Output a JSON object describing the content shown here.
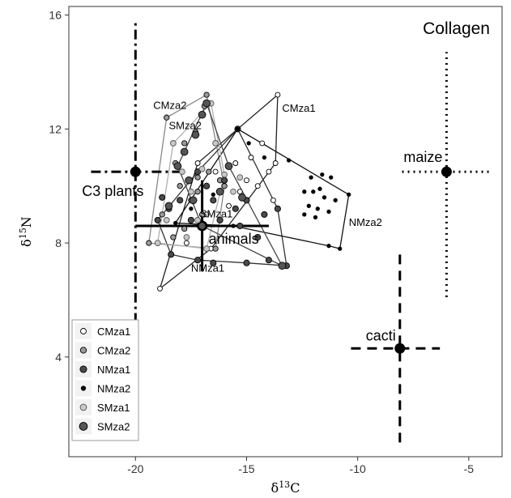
{
  "chart_data": {
    "type": "scatter",
    "title": "Collagen",
    "xlabel": "δ13C",
    "ylabel": "δ15N",
    "xlim": [
      -23,
      -3.5
    ],
    "ylim": [
      0.5,
      16.3
    ],
    "xticks": [
      -20,
      -15,
      -10,
      -5
    ],
    "yticks": [
      4,
      8,
      12,
      16
    ],
    "grid": false,
    "legend": "bottom-left",
    "series": [
      {
        "name": "CMza1",
        "marker": "open",
        "fill": "#ffffff",
        "hull": [
          [
            -18.9,
            6.4
          ],
          [
            -16.6,
            7.8
          ],
          [
            -13.7,
            10.8
          ],
          [
            -13.6,
            13.2
          ],
          [
            -17.2,
            10.8
          ]
        ],
        "points": [
          [
            -16.4,
            10.5
          ],
          [
            -16.0,
            10.0
          ],
          [
            -15.5,
            10.8
          ],
          [
            -15.3,
            9.8
          ],
          [
            -15.0,
            10.2
          ],
          [
            -14.5,
            10.0
          ],
          [
            -14.8,
            11.0
          ],
          [
            -14.3,
            11.5
          ],
          [
            -14.0,
            10.5
          ],
          [
            -13.8,
            9.5
          ],
          [
            -16.8,
            9.0
          ],
          [
            -15.8,
            9.3
          ],
          [
            -13.7,
            10.8
          ],
          [
            -13.6,
            13.2
          ],
          [
            -18.9,
            6.4
          ],
          [
            -17.7,
            8.0
          ],
          [
            -16.6,
            7.8
          ],
          [
            -17.2,
            10.8
          ]
        ]
      },
      {
        "name": "CMza2",
        "marker": "medium-grey",
        "fill": "#9a9a9a",
        "hull": [
          [
            -19.4,
            8.0
          ],
          [
            -18.6,
            12.4
          ],
          [
            -16.8,
            13.2
          ],
          [
            -16.0,
            10.0
          ],
          [
            -16.4,
            7.8
          ]
        ],
        "points": [
          [
            -18.6,
            12.4
          ],
          [
            -16.8,
            13.2
          ],
          [
            -16.9,
            12.8
          ],
          [
            -17.3,
            11.9
          ],
          [
            -17.8,
            11.5
          ],
          [
            -18.2,
            10.8
          ],
          [
            -18.0,
            10.0
          ],
          [
            -17.5,
            9.5
          ],
          [
            -17.2,
            9.8
          ],
          [
            -16.7,
            10.5
          ],
          [
            -16.2,
            10.2
          ],
          [
            -16.0,
            10.0
          ],
          [
            -17.0,
            9.0
          ],
          [
            -17.8,
            8.5
          ],
          [
            -18.3,
            8.2
          ],
          [
            -18.8,
            9.0
          ],
          [
            -19.4,
            8.0
          ],
          [
            -16.4,
            7.8
          ],
          [
            -17.2,
            10.3
          ]
        ]
      },
      {
        "name": "NMza1",
        "marker": "dark-grey",
        "fill": "#4a4a4a",
        "hull": [
          [
            -19.0,
            8.8
          ],
          [
            -17.2,
            10.5
          ],
          [
            -15.4,
            12.0
          ],
          [
            -13.6,
            9.2
          ],
          [
            -13.2,
            7.2
          ],
          [
            -15.0,
            7.3
          ],
          [
            -17.2,
            7.4
          ],
          [
            -18.4,
            7.6
          ]
        ],
        "points": [
          [
            -19.0,
            8.8
          ],
          [
            -18.8,
            9.6
          ],
          [
            -18.5,
            9.2
          ],
          [
            -18.0,
            9.5
          ],
          [
            -17.5,
            8.8
          ],
          [
            -17.2,
            10.5
          ],
          [
            -16.8,
            10.0
          ],
          [
            -16.5,
            9.5
          ],
          [
            -16.0,
            10.2
          ],
          [
            -15.5,
            9.2
          ],
          [
            -15.4,
            12.0
          ],
          [
            -15.0,
            9.5
          ],
          [
            -14.5,
            8.2
          ],
          [
            -14.2,
            9.0
          ],
          [
            -13.6,
            9.2
          ],
          [
            -13.2,
            7.2
          ],
          [
            -14.0,
            7.4
          ],
          [
            -15.0,
            7.3
          ],
          [
            -16.5,
            7.3
          ],
          [
            -17.2,
            7.4
          ],
          [
            -18.4,
            7.6
          ],
          [
            -15.3,
            8.6
          ],
          [
            -16.2,
            8.8
          ]
        ]
      },
      {
        "name": "NMza2",
        "marker": "small-black",
        "fill": "#000000",
        "hull": [
          [
            -18.2,
            8.7
          ],
          [
            -15.4,
            12.0
          ],
          [
            -10.4,
            9.7
          ],
          [
            -10.8,
            7.8
          ],
          [
            -11.3,
            7.9
          ],
          [
            -15.6,
            8.6
          ]
        ],
        "points": [
          [
            -15.4,
            12.0
          ],
          [
            -14.9,
            11.5
          ],
          [
            -14.2,
            11.0
          ],
          [
            -13.1,
            10.9
          ],
          [
            -12.1,
            10.3
          ],
          [
            -11.6,
            10.4
          ],
          [
            -11.2,
            10.3
          ],
          [
            -11.7,
            9.9
          ],
          [
            -12.0,
            9.8
          ],
          [
            -12.4,
            9.8
          ],
          [
            -11.5,
            9.6
          ],
          [
            -11.0,
            9.5
          ],
          [
            -12.2,
            9.3
          ],
          [
            -11.8,
            9.2
          ],
          [
            -11.3,
            9.1
          ],
          [
            -12.4,
            9.0
          ],
          [
            -11.9,
            8.9
          ],
          [
            -10.4,
            9.7
          ],
          [
            -10.8,
            7.8
          ],
          [
            -11.3,
            7.9
          ],
          [
            -15.6,
            8.6
          ],
          [
            -16.5,
            9.7
          ],
          [
            -17.5,
            9.2
          ],
          [
            -18.2,
            8.7
          ]
        ]
      },
      {
        "name": "SMza1",
        "marker": "light-grey",
        "fill": "#c8c8c8",
        "hull": [
          [
            -19.0,
            8.0
          ],
          [
            -18.3,
            11.5
          ],
          [
            -16.6,
            12.9
          ],
          [
            -16.0,
            10.4
          ],
          [
            -16.8,
            7.8
          ]
        ],
        "points": [
          [
            -19.0,
            8.0
          ],
          [
            -18.6,
            8.8
          ],
          [
            -18.3,
            11.5
          ],
          [
            -17.9,
            10.5
          ],
          [
            -17.5,
            9.8
          ],
          [
            -17.0,
            10.6
          ],
          [
            -16.6,
            12.9
          ],
          [
            -16.4,
            11.5
          ],
          [
            -16.0,
            10.4
          ],
          [
            -17.2,
            8.8
          ],
          [
            -16.8,
            7.8
          ],
          [
            -17.7,
            8.2
          ],
          [
            -15.3,
            10.3
          ],
          [
            -15.6,
            9.8
          ]
        ]
      },
      {
        "name": "SMza2",
        "marker": "large-dark",
        "fill": "#555555",
        "hull": [
          [
            -18.1,
            10.7
          ],
          [
            -16.8,
            12.9
          ],
          [
            -15.8,
            10.7
          ],
          [
            -13.4,
            7.2
          ],
          [
            -17.0,
            8.6
          ]
        ],
        "points": [
          [
            -16.8,
            12.9
          ],
          [
            -17.0,
            12.5
          ],
          [
            -17.3,
            11.8
          ],
          [
            -17.8,
            11.2
          ],
          [
            -18.1,
            10.7
          ],
          [
            -17.6,
            10.2
          ],
          [
            -17.4,
            9.5
          ],
          [
            -17.0,
            8.6
          ],
          [
            -16.2,
            9.8
          ],
          [
            -15.8,
            10.7
          ],
          [
            -15.2,
            9.6
          ],
          [
            -13.4,
            7.2
          ],
          [
            -18.5,
            9.3
          ]
        ]
      }
    ],
    "reference_points": [
      {
        "label": "C3 plants",
        "x": -20.0,
        "y": 10.5,
        "x_range": [
          -22.0,
          -18.0
        ],
        "y_range": [
          5.2,
          15.8
        ],
        "x_style": "dash-dot",
        "y_style": "dash-dot"
      },
      {
        "label": "maize",
        "x": -6.0,
        "y": 10.5,
        "x_range": [
          -8.0,
          -4.0
        ],
        "y_range": [
          6.1,
          14.7
        ],
        "x_style": "dotted",
        "y_style": "dotted"
      },
      {
        "label": "cacti",
        "x": -8.1,
        "y": 4.3,
        "x_range": [
          -10.3,
          -6.3
        ],
        "y_range": [
          1.0,
          7.8
        ],
        "x_style": "dashed",
        "y_style": "dashed"
      },
      {
        "label": "animals",
        "x": -17.0,
        "y": 8.6,
        "x_range": [
          -20.0,
          -14.0
        ],
        "y_range": [
          7.0,
          10.2
        ],
        "x_style": "solid",
        "y_style": "solid"
      }
    ],
    "hull_labels": [
      {
        "text": "CMza1",
        "x": -13.4,
        "y": 12.6
      },
      {
        "text": "CMza2",
        "x": -19.2,
        "y": 12.7
      },
      {
        "text": "SMza2",
        "x": -18.5,
        "y": 12.0
      },
      {
        "text": "SMza1",
        "x": -17.1,
        "y": 8.9
      },
      {
        "text": "NMza1",
        "x": -17.5,
        "y": 7.0
      },
      {
        "text": "NMza2",
        "x": -10.4,
        "y": 8.6
      }
    ]
  }
}
